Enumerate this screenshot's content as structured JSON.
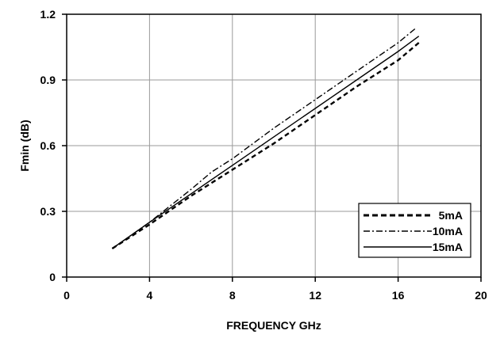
{
  "chart_data": {
    "type": "line",
    "title": "",
    "xlabel": "FREQUENCY GHz",
    "ylabel": "Fmin (dB)",
    "xlim": [
      0,
      20
    ],
    "ylim": [
      0,
      1.2
    ],
    "xticks": [
      "0",
      "4",
      "8",
      "12",
      "16",
      "20"
    ],
    "yticks": [
      "0",
      "0.3",
      "0.6",
      "0.9",
      "1.2"
    ],
    "grid": true,
    "legend_position": "bottom-right",
    "series": [
      {
        "name": "5mA",
        "style": "dashed",
        "color": "#000000",
        "x": [
          2.2,
          4,
          6,
          8,
          10,
          12,
          14,
          16,
          17
        ],
        "y": [
          0.13,
          0.24,
          0.37,
          0.49,
          0.61,
          0.74,
          0.87,
          0.99,
          1.07
        ]
      },
      {
        "name": "10mA",
        "style": "dash-dot",
        "color": "#000000",
        "x": [
          2.2,
          4,
          6,
          7,
          8,
          10,
          12,
          14,
          16,
          16.9
        ],
        "y": [
          0.13,
          0.25,
          0.4,
          0.48,
          0.54,
          0.68,
          0.81,
          0.94,
          1.07,
          1.14
        ]
      },
      {
        "name": "15mA",
        "style": "solid",
        "color": "#000000",
        "x": [
          2.2,
          4,
          6,
          8,
          10,
          12,
          14,
          16,
          17
        ],
        "y": [
          0.13,
          0.25,
          0.38,
          0.51,
          0.64,
          0.77,
          0.9,
          1.03,
          1.1
        ]
      }
    ]
  }
}
